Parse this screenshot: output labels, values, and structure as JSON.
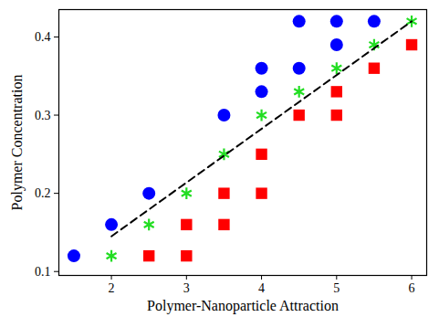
{
  "chart_data": {
    "type": "scatter",
    "x_label": "Polymer-Nanoparticle Attraction",
    "y_label": "Polymer Concentration",
    "xlim": [
      1.3,
      6.2
    ],
    "xticks": [
      2,
      3,
      4,
      5,
      6
    ],
    "ylim": [
      0.095,
      0.435
    ],
    "yticks": [
      0.1,
      0.2,
      0.3,
      0.4
    ],
    "grid": false,
    "series": [
      {
        "type": "scatter",
        "marker": "circle",
        "color": "#0000ff",
        "x": [
          1.5,
          2,
          2.5,
          3.5,
          4,
          4,
          4.5,
          4.5,
          5,
          5,
          5.5
        ],
        "values": [
          0.12,
          0.16,
          0.2,
          0.3,
          0.33,
          0.36,
          0.36,
          0.42,
          0.39,
          0.42,
          0.42
        ]
      },
      {
        "type": "scatter",
        "marker": "asterisk",
        "color": "#22dd22",
        "x": [
          2,
          2.5,
          3,
          3.5,
          4,
          4.5,
          5,
          5.5,
          6
        ],
        "values": [
          0.12,
          0.16,
          0.2,
          0.25,
          0.3,
          0.33,
          0.36,
          0.39,
          0.42
        ]
      },
      {
        "type": "scatter",
        "marker": "square",
        "color": "#ff0000",
        "x": [
          2.5,
          3,
          3,
          3.5,
          3.5,
          4,
          4,
          4.5,
          5,
          5,
          5.5,
          6
        ],
        "values": [
          0.12,
          0.12,
          0.16,
          0.16,
          0.2,
          0.2,
          0.25,
          0.3,
          0.3,
          0.33,
          0.36,
          0.39
        ]
      },
      {
        "type": "line",
        "line_style": "dashed",
        "color": "#000000",
        "x": [
          2,
          6
        ],
        "values": [
          0.145,
          0.42
        ]
      }
    ]
  }
}
